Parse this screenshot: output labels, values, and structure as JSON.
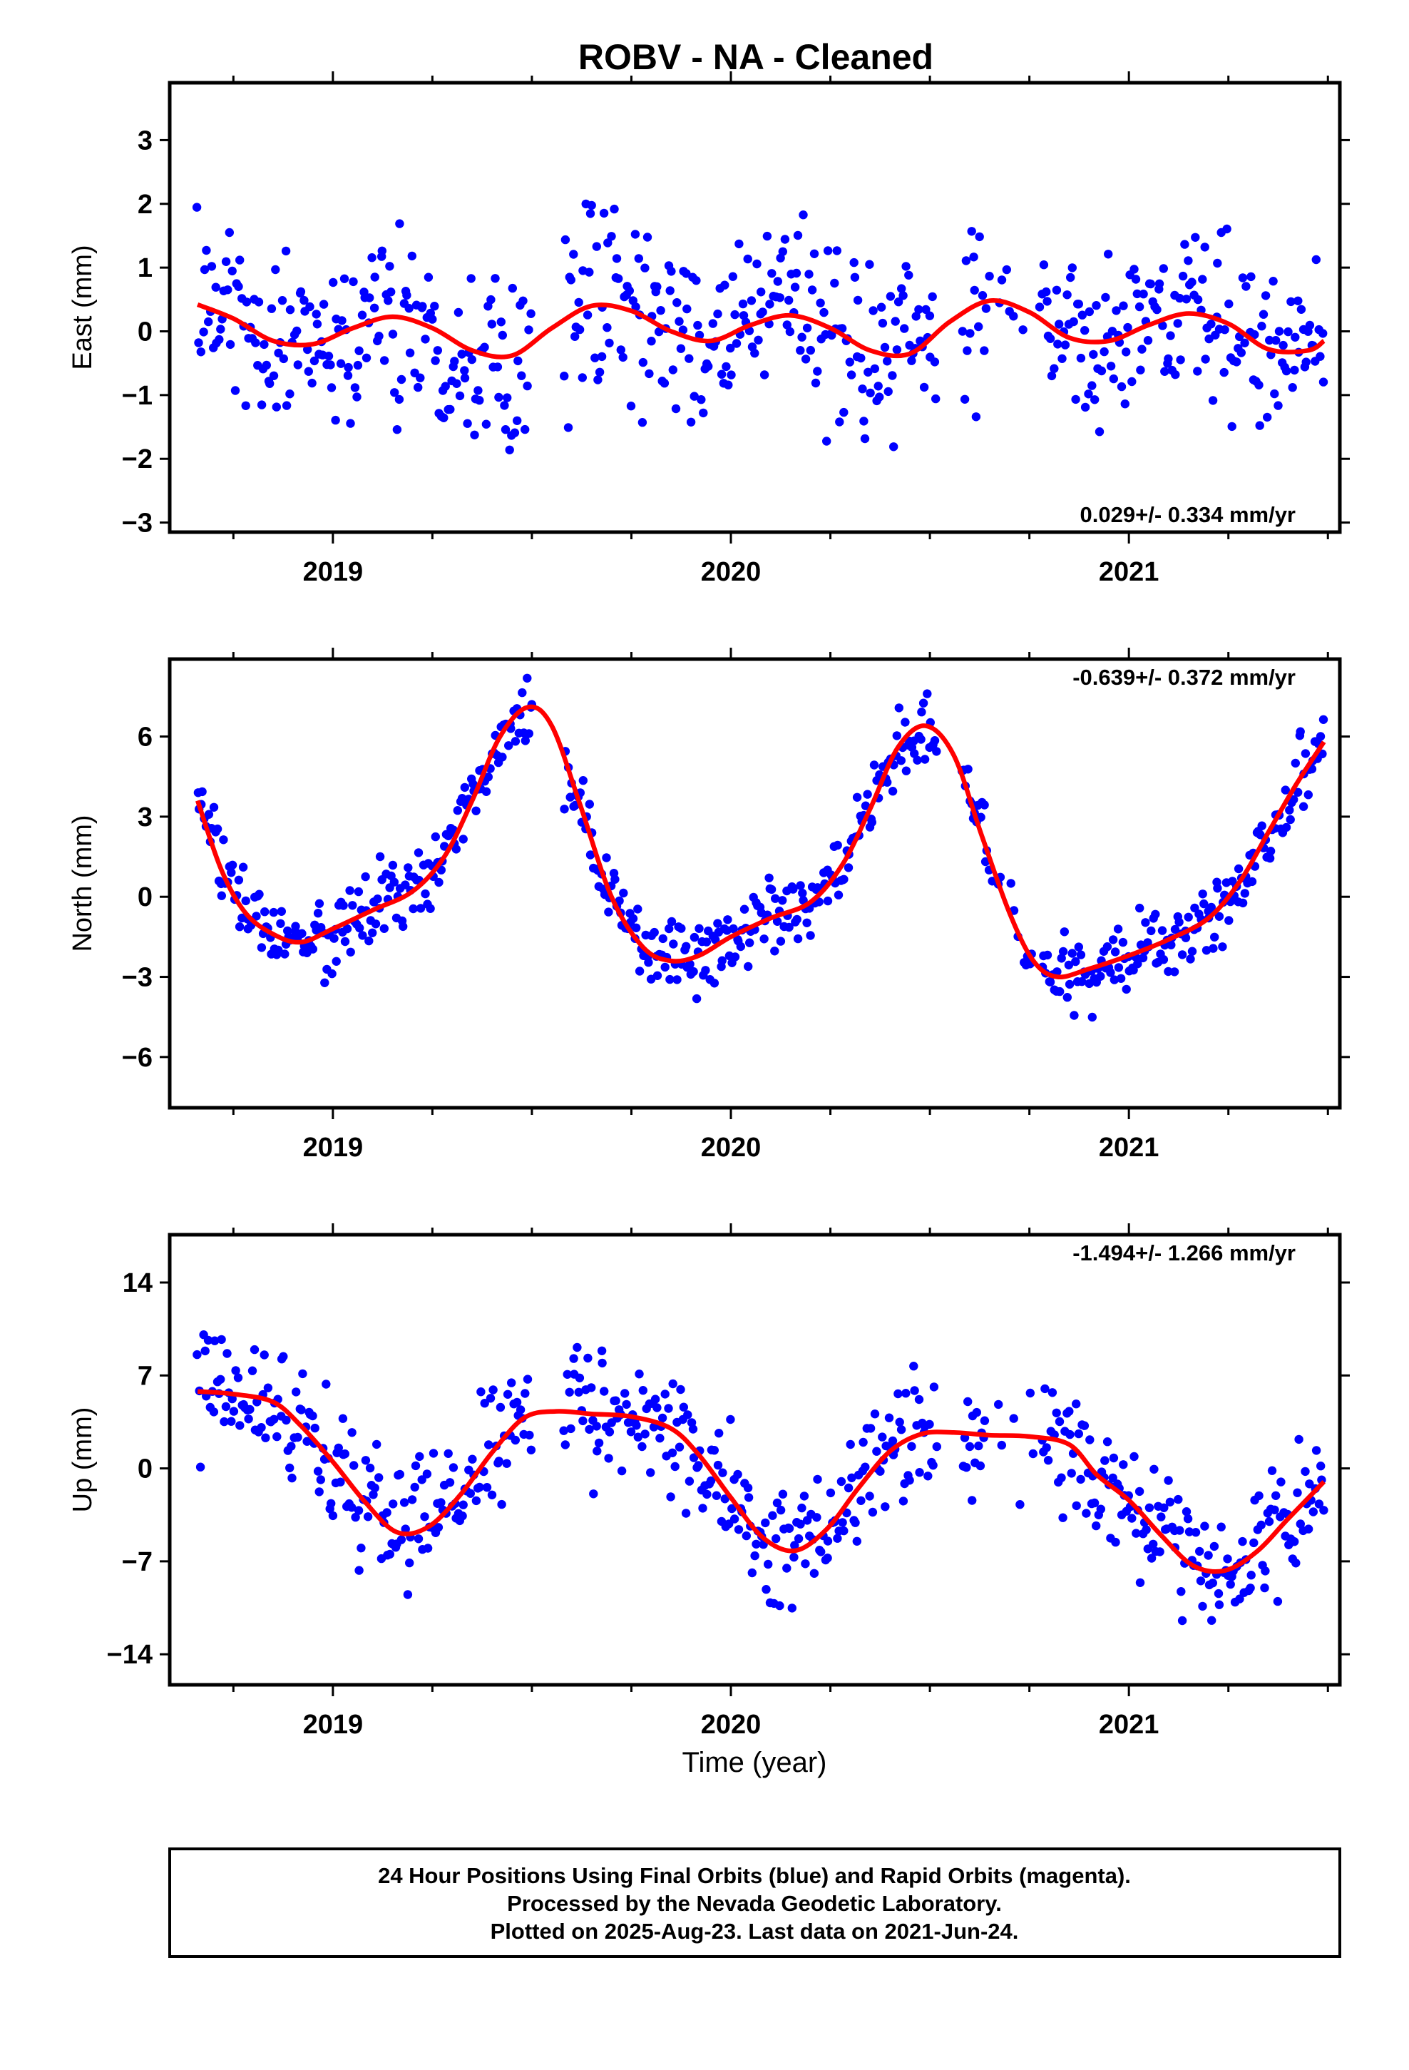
{
  "title": "ROBV  - NA - Cleaned",
  "colors": {
    "points": "#0000ff",
    "fit": "#ff0000",
    "frame": "#000000"
  },
  "footer": {
    "line1": "24 Hour Positions Using Final Orbits (blue) and Rapid Orbits (magenta).",
    "line2": "Processed by the Nevada Geodetic Laboratory.",
    "line3": "Plotted on 2025-Aug-23. Last data on 2021-Jun-24."
  },
  "x_axis_label": "Time (year)",
  "chart_data": [
    {
      "type": "scatter",
      "component": "east",
      "ylabel": "East (mm)",
      "rate_label": "0.029+/- 0.334 mm/yr",
      "rate_position": "bottom-right",
      "xlim": [
        2018.59,
        2021.53
      ],
      "ylim": [
        -3.15,
        3.9
      ],
      "yticks": [
        -3,
        -2,
        -1,
        0,
        1,
        2,
        3
      ],
      "xticks": [
        2019,
        2020,
        2021
      ],
      "grid": false,
      "fit": {
        "x": [
          2018.66,
          2018.75,
          2018.85,
          2018.95,
          2019.05,
          2019.15,
          2019.25,
          2019.35,
          2019.45,
          2019.55,
          2019.65,
          2019.75,
          2019.85,
          2019.95,
          2020.05,
          2020.15,
          2020.25,
          2020.35,
          2020.45,
          2020.55,
          2020.65,
          2020.75,
          2020.85,
          2020.95,
          2021.05,
          2021.15,
          2021.25,
          2021.35,
          2021.45,
          2021.49
        ],
        "y": [
          0.42,
          0.2,
          -0.15,
          -0.2,
          0.05,
          0.23,
          0.05,
          -0.3,
          -0.38,
          0.05,
          0.4,
          0.32,
          0.0,
          -0.15,
          0.1,
          0.25,
          0.05,
          -0.3,
          -0.35,
          0.15,
          0.48,
          0.3,
          -0.1,
          -0.15,
          0.1,
          0.28,
          0.12,
          -0.28,
          -0.3,
          -0.15
        ]
      },
      "amp": 1.05,
      "rmin": -2.9,
      "rmax": 3.8
    },
    {
      "type": "scatter",
      "component": "north",
      "ylabel": "North (mm)",
      "rate_label": "-0.639+/- 0.372 mm/yr",
      "rate_position": "top-right",
      "xlim": [
        2018.59,
        2021.53
      ],
      "ylim": [
        -7.9,
        8.9
      ],
      "yticks": [
        -6,
        -3,
        0,
        3,
        6
      ],
      "xticks": [
        2019,
        2020,
        2021
      ],
      "grid": false,
      "fit": {
        "x": [
          2018.66,
          2018.72,
          2018.78,
          2018.85,
          2018.92,
          2019.0,
          2019.1,
          2019.2,
          2019.28,
          2019.35,
          2019.42,
          2019.49,
          2019.55,
          2019.62,
          2019.7,
          2019.78,
          2019.85,
          2019.92,
          2020.0,
          2020.1,
          2020.2,
          2020.28,
          2020.35,
          2020.42,
          2020.49,
          2020.56,
          2020.63,
          2020.7,
          2020.76,
          2020.82,
          2020.9,
          2021.0,
          2021.1,
          2021.2,
          2021.28,
          2021.35,
          2021.42,
          2021.49
        ],
        "y": [
          3.6,
          1.0,
          -0.6,
          -1.4,
          -1.7,
          -1.2,
          -0.5,
          0.2,
          1.5,
          3.6,
          6.0,
          7.1,
          6.4,
          3.5,
          0.0,
          -1.9,
          -2.4,
          -2.2,
          -1.5,
          -0.8,
          -0.2,
          1.2,
          3.3,
          5.6,
          6.4,
          5.3,
          2.3,
          -0.6,
          -2.4,
          -3.0,
          -2.7,
          -2.2,
          -1.6,
          -0.8,
          0.6,
          2.4,
          4.2,
          5.8
        ]
      },
      "amp": 1.05,
      "rmin": -7.7,
      "rmax": 8.6
    },
    {
      "type": "scatter",
      "component": "up",
      "ylabel": "Up (mm)",
      "rate_label": "-1.494+/- 1.266 mm/yr",
      "rate_position": "top-right",
      "xlim": [
        2018.59,
        2021.53
      ],
      "ylim": [
        -16.3,
        17.6
      ],
      "yticks": [
        -14,
        -7,
        0,
        7,
        14
      ],
      "xticks": [
        2019,
        2020,
        2021
      ],
      "grid": false,
      "fit": {
        "x": [
          2018.66,
          2018.75,
          2018.85,
          2018.92,
          2019.0,
          2019.08,
          2019.16,
          2019.24,
          2019.32,
          2019.4,
          2019.48,
          2019.56,
          2019.65,
          2019.75,
          2019.85,
          2019.92,
          2020.0,
          2020.08,
          2020.16,
          2020.24,
          2020.32,
          2020.4,
          2020.48,
          2020.56,
          2020.65,
          2020.75,
          2020.85,
          2020.92,
          2021.0,
          2021.08,
          2021.16,
          2021.24,
          2021.32,
          2021.4,
          2021.49
        ],
        "y": [
          5.8,
          5.6,
          5.0,
          3.2,
          0.5,
          -2.5,
          -4.8,
          -4.4,
          -2.0,
          1.2,
          3.8,
          4.3,
          4.1,
          3.9,
          3.0,
          1.0,
          -2.2,
          -5.2,
          -6.2,
          -4.6,
          -1.5,
          1.3,
          2.6,
          2.7,
          2.5,
          2.4,
          1.8,
          -0.5,
          -2.4,
          -5.0,
          -7.3,
          -7.7,
          -6.3,
          -3.8,
          -1.0
        ]
      },
      "amp": 3.4,
      "rmin": -15.8,
      "rmax": 17.2
    }
  ]
}
